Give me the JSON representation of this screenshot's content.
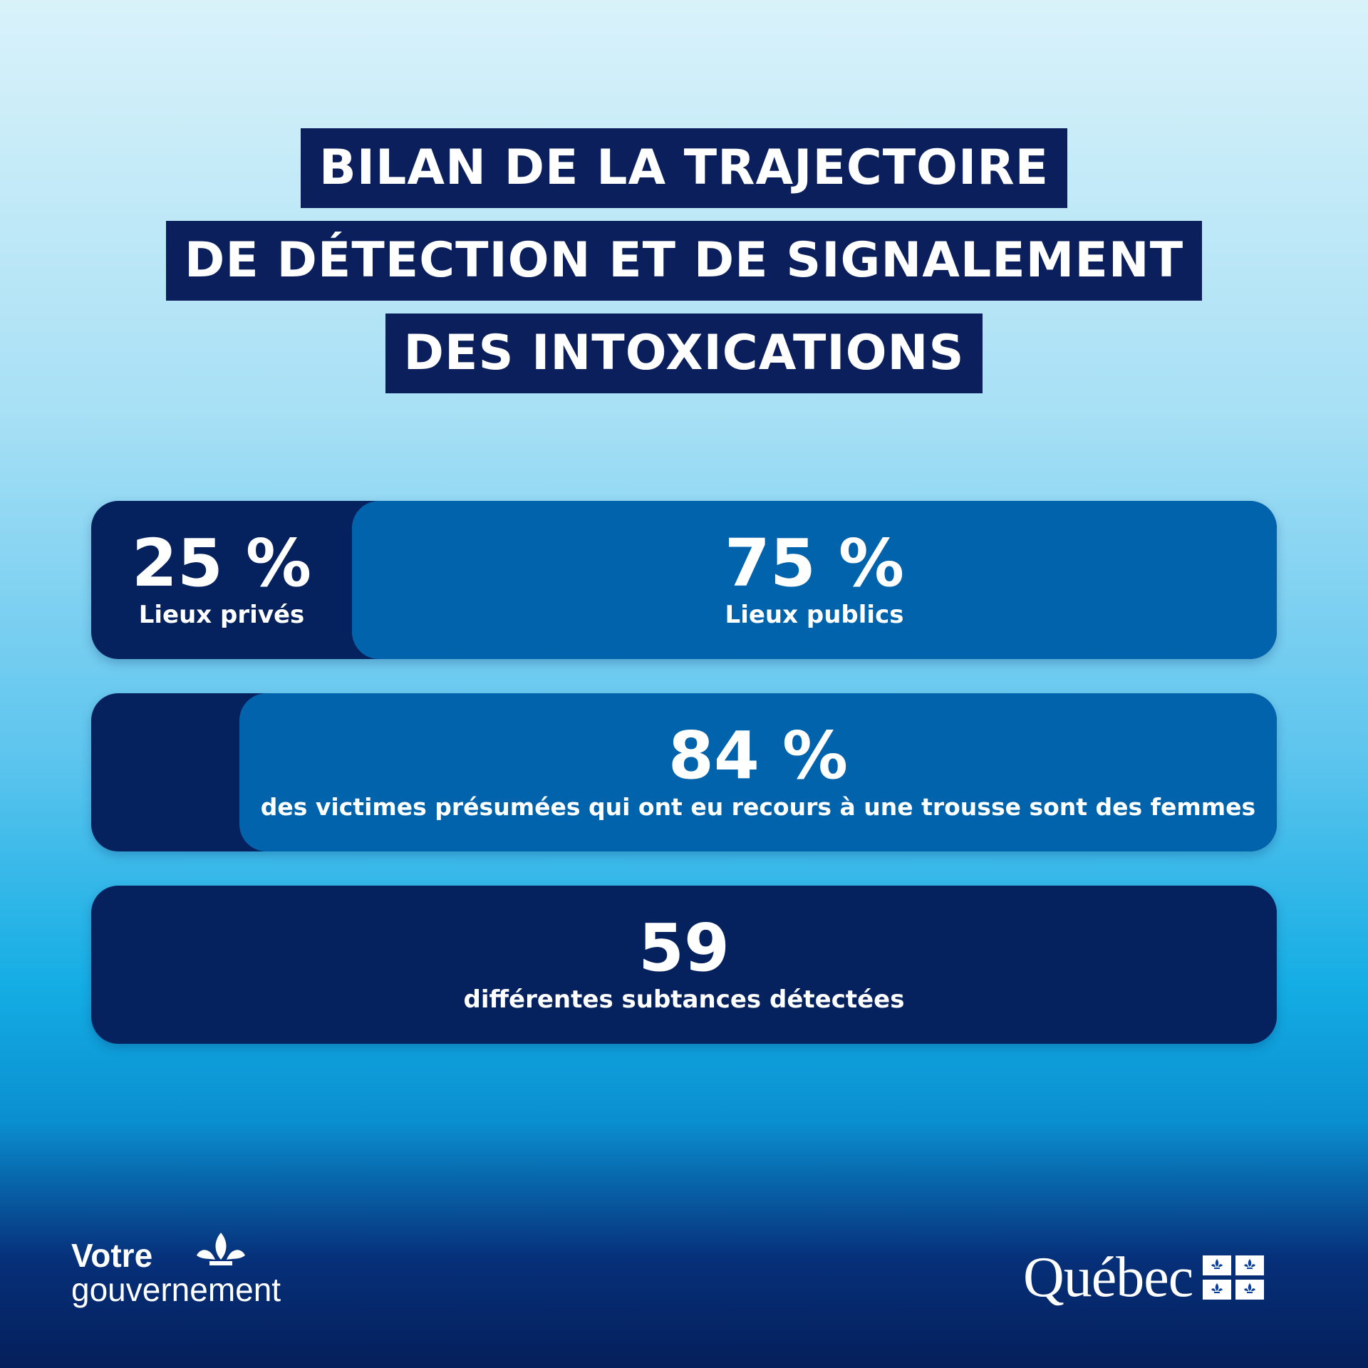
{
  "title": {
    "lines": [
      "BILAN DE LA TRAJECTOIRE",
      "DE DÉTECTION ET DE SIGNALEMENT",
      "DES INTOXICATIONS"
    ]
  },
  "bars": [
    {
      "segments": [
        {
          "value": "25 %",
          "label": "Lieux privés",
          "share": 0.25
        },
        {
          "value": "75 %",
          "label": "Lieux publics",
          "share": 0.75
        }
      ]
    },
    {
      "value": "84 %",
      "label": "des victimes présumées qui ont eu recours à une trousse sont des femmes",
      "share": 0.84
    },
    {
      "value": "59",
      "label": "différentes subtances détectées"
    }
  ],
  "logos": {
    "left_line1": "Votre",
    "left_line2": "gouvernement",
    "right_word": "Québec"
  },
  "colors": {
    "title_bg": "#0a1f5c",
    "bar_dark": "#06225e",
    "bar_light": "#0063ab"
  }
}
